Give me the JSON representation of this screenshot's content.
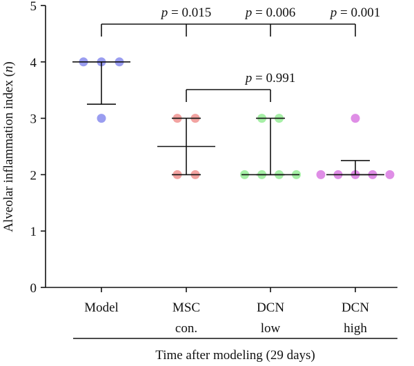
{
  "chart_data": {
    "type": "scatter",
    "ylabel_main": "Alveolar inflammation index (",
    "ylabel_var": "n",
    "ylabel_close": ")",
    "xlabel": "Time after modeling (29 days)",
    "ylim": [
      0,
      5
    ],
    "yticks": [
      "0",
      "1",
      "2",
      "3",
      "4",
      "5"
    ],
    "categories": [
      {
        "name": "Model",
        "lines": [
          "Model"
        ],
        "color": "#9a9df0",
        "points": [
          4,
          4,
          4,
          3
        ],
        "mean": 4,
        "error": [
          3.25,
          4
        ]
      },
      {
        "name": "MSC con.",
        "lines": [
          "MSC",
          "con."
        ],
        "color": "#f2a3a1",
        "points": [
          3,
          3,
          2,
          2
        ],
        "mean": 2.5,
        "error": [
          2,
          3
        ]
      },
      {
        "name": "DCN low",
        "lines": [
          "DCN",
          "low"
        ],
        "color": "#a6efa6",
        "points": [
          3,
          3,
          2,
          2,
          2,
          2
        ],
        "mean": 2,
        "error": [
          2,
          3
        ]
      },
      {
        "name": "DCN high",
        "lines": [
          "DCN",
          "high"
        ],
        "color": "#df8ee6",
        "points": [
          3,
          2,
          2,
          2,
          2,
          2
        ],
        "mean": 2,
        "error": [
          2,
          2.25
        ]
      }
    ],
    "comparisons": [
      {
        "from": 0,
        "to": 1,
        "p_prefix": "p",
        "p_value": " = 0.015"
      },
      {
        "from": 0,
        "to": 2,
        "p_prefix": "p",
        "p_value": " = 0.006"
      },
      {
        "from": 0,
        "to": 3,
        "p_prefix": "p",
        "p_value": " = 0.001"
      },
      {
        "from": 1,
        "to": 2,
        "p_prefix": "p",
        "p_value": " = 0.991"
      }
    ]
  }
}
